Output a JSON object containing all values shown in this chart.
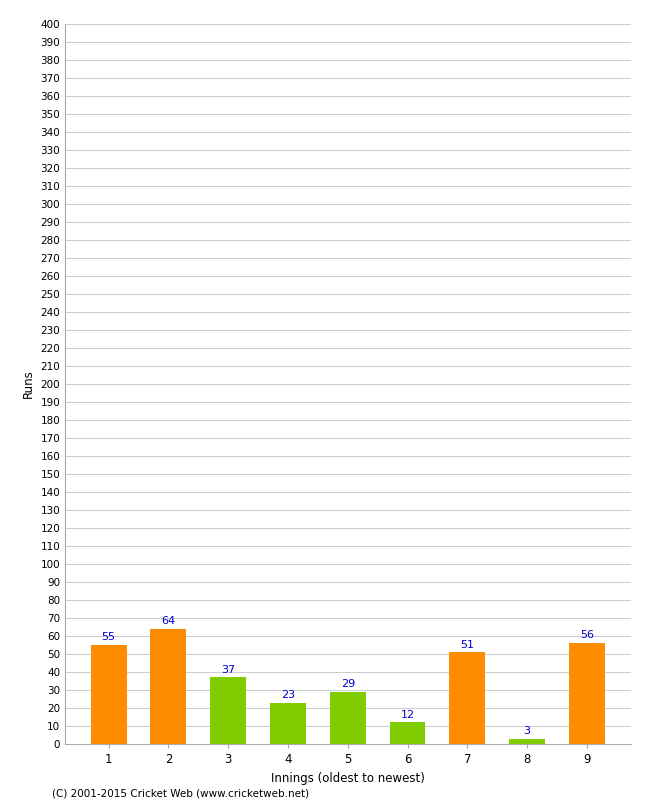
{
  "title": "",
  "xlabel": "Innings (oldest to newest)",
  "ylabel": "Runs",
  "categories": [
    "1",
    "2",
    "3",
    "4",
    "5",
    "6",
    "7",
    "8",
    "9"
  ],
  "values": [
    55,
    64,
    37,
    23,
    29,
    12,
    51,
    3,
    56
  ],
  "bar_colors": [
    "#ff8c00",
    "#ff8c00",
    "#7fcc00",
    "#7fcc00",
    "#7fcc00",
    "#7fcc00",
    "#ff8c00",
    "#7fcc00",
    "#ff8c00"
  ],
  "label_color": "#0000cc",
  "ylim": [
    0,
    400
  ],
  "ytick_step": 10,
  "background_color": "#ffffff",
  "grid_color": "#cccccc",
  "copyright": "(C) 2001-2015 Cricket Web (www.cricketweb.net)"
}
